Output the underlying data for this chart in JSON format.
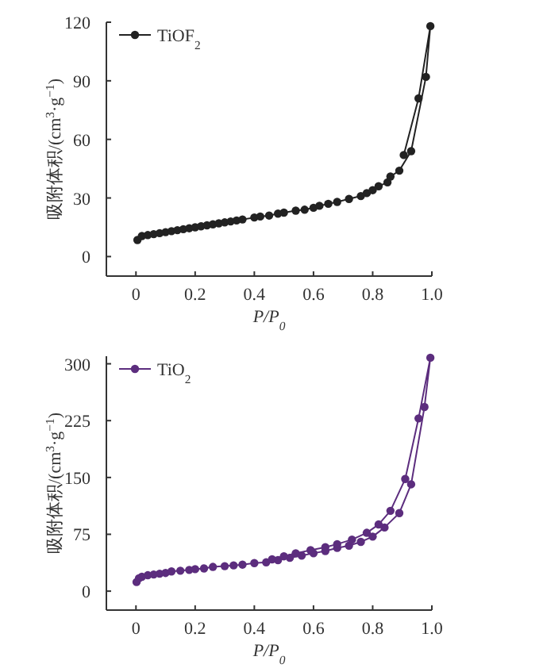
{
  "chart_data": [
    {
      "type": "line",
      "xlabel": "P/P$_{0}$",
      "ylabel": "吸附体积/(cm$^{3}$·g$^{−1}$)",
      "marker": "circle",
      "legend": "top left",
      "grid": false,
      "xlim": [
        -0.1,
        1.0
      ],
      "ylim": [
        -10,
        120
      ],
      "xticks": [
        0,
        0.2,
        0.4,
        0.6,
        0.8,
        {
          "value": 1.0,
          "label": "1.0"
        }
      ],
      "yticks": [
        0,
        30,
        60,
        90,
        120
      ],
      "series": [
        {
          "name": "TiOF$_{2}$",
          "color": "#222222",
          "x": [
            0.005,
            0.02,
            0.04,
            0.06,
            0.08,
            0.1,
            0.12,
            0.14,
            0.16,
            0.18,
            0.2,
            0.22,
            0.24,
            0.26,
            0.28,
            0.3,
            0.32,
            0.34,
            0.36,
            0.4,
            0.42,
            0.45,
            0.48,
            0.5,
            0.54,
            0.57,
            0.6,
            0.62,
            0.65,
            0.68,
            0.72,
            0.76,
            0.78,
            0.8,
            0.82,
            0.85,
            0.86,
            0.89,
            0.93,
            0.98,
            0.995,
            0.955,
            0.905
          ],
          "values": [
            8.5,
            10.5,
            11,
            11.5,
            12,
            12.5,
            13,
            13.5,
            14,
            14.5,
            15,
            15.5,
            16,
            16.5,
            17,
            17.5,
            18,
            18.5,
            19,
            20,
            20.5,
            21,
            22,
            22.5,
            23.5,
            24,
            25,
            26,
            27,
            28,
            29.5,
            31,
            32.5,
            34,
            36,
            38,
            41,
            44,
            54,
            92,
            118,
            81,
            52
          ]
        }
      ]
    },
    {
      "type": "line",
      "xlabel": "P/P$_{0}$",
      "ylabel": "吸附体积/(cm$^{3}$·g$^{−1}$)",
      "marker": "circle",
      "legend": "top left",
      "grid": false,
      "xlim": [
        -0.1,
        1.0
      ],
      "ylim": [
        -25,
        310
      ],
      "xticks": [
        0,
        0.2,
        0.4,
        0.6,
        0.8,
        {
          "value": 1.0,
          "label": "1.0"
        }
      ],
      "yticks": [
        0,
        75,
        150,
        225,
        300
      ],
      "series": [
        {
          "name": "TiO$_{2}$",
          "color": "#5c2d7e",
          "x": [
            0.002,
            0.01,
            0.02,
            0.04,
            0.06,
            0.08,
            0.1,
            0.12,
            0.15,
            0.18,
            0.2,
            0.23,
            0.26,
            0.3,
            0.33,
            0.36,
            0.4,
            0.44,
            0.48,
            0.52,
            0.56,
            0.6,
            0.64,
            0.68,
            0.72,
            0.76,
            0.8,
            0.84,
            0.89,
            0.93,
            0.975,
            0.995,
            0.955,
            0.91,
            0.86,
            0.82,
            0.78,
            0.73,
            0.68,
            0.64,
            0.59,
            0.54,
            0.5,
            0.46
          ],
          "values": [
            12,
            17,
            19,
            21,
            22,
            23,
            24,
            26,
            27,
            28,
            29,
            30,
            32,
            33,
            34,
            35,
            37,
            38,
            41,
            44,
            47,
            50,
            53,
            57,
            60,
            65,
            72,
            84,
            103,
            141,
            243,
            308,
            228,
            148,
            106,
            88,
            77,
            68,
            62,
            58,
            54,
            50,
            46,
            42
          ]
        }
      ]
    }
  ]
}
